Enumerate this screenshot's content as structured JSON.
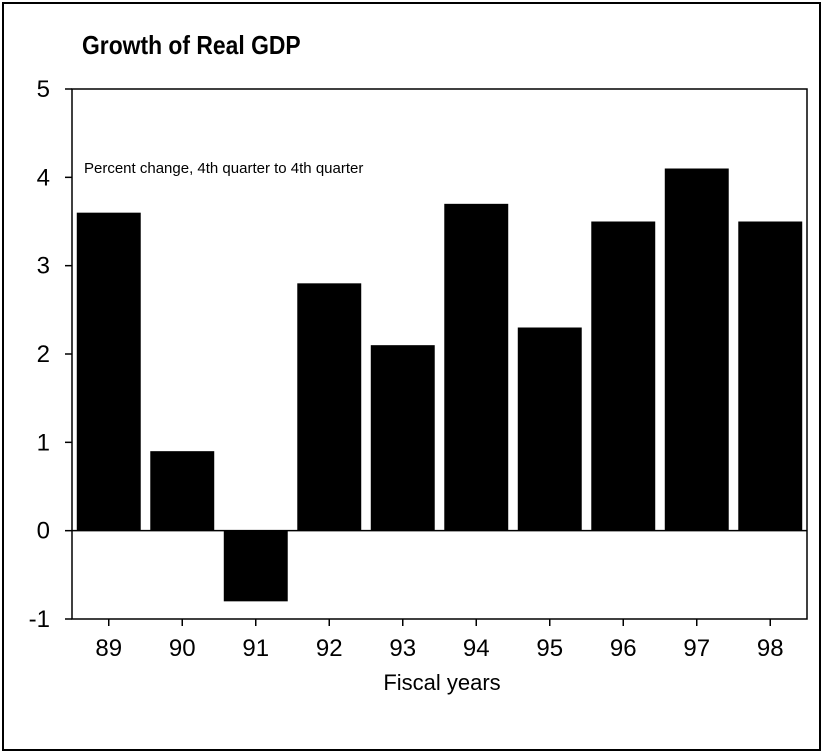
{
  "chart_data": {
    "type": "bar",
    "title": "Growth of Real GDP",
    "subtitle": "Percent change, 4th quarter to 4th quarter",
    "xlabel": "Fiscal years",
    "ylabel": "",
    "categories": [
      "89",
      "90",
      "91",
      "92",
      "93",
      "94",
      "95",
      "96",
      "97",
      "98"
    ],
    "values": [
      3.6,
      0.9,
      -0.8,
      2.8,
      2.1,
      3.7,
      2.3,
      3.5,
      4.1,
      3.5
    ],
    "ylim": [
      -1,
      5
    ],
    "yticks": [
      "-1",
      "0",
      "1",
      "2",
      "3",
      "4",
      "5"
    ],
    "grid": false,
    "legend": "none",
    "colors": {
      "bar": "#000000",
      "axis": "#000000",
      "background": "#ffffff"
    }
  }
}
